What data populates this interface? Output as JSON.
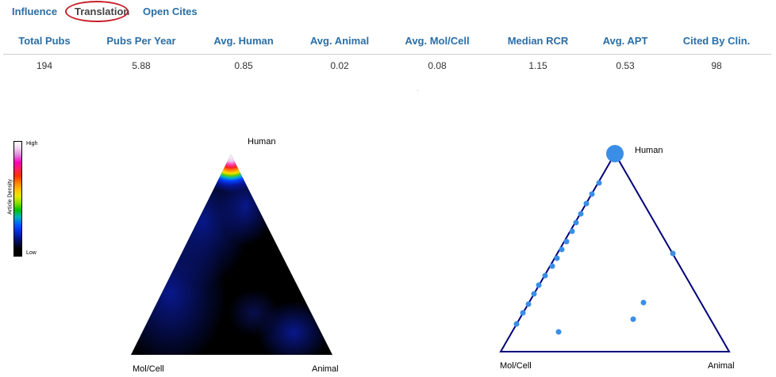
{
  "tabs": [
    {
      "label": "Influence"
    },
    {
      "label": "Translation"
    },
    {
      "label": "Open Cites"
    }
  ],
  "stats": {
    "headers": [
      "Total Pubs",
      "Pubs Per Year",
      "Avg. Human",
      "Avg. Animal",
      "Avg. Mol/Cell",
      "Median RCR",
      "Avg. APT",
      "Cited By Clin."
    ],
    "values": [
      "194",
      "5.88",
      "0.85",
      "0.02",
      "0.08",
      "1.15",
      "0.53",
      "98"
    ]
  },
  "density_legend": {
    "title": "Article Density",
    "high": "High",
    "low": "Low"
  },
  "density_plot": {
    "vertex_top": "Human",
    "vertex_left": "Mol/Cell",
    "vertex_right": "Animal"
  },
  "ternary_plot": {
    "vertex_top": "Human",
    "vertex_left": "Mol/Cell",
    "vertex_right": "Animal"
  },
  "colors": {
    "tab_blue": "#2a6ea6",
    "highlight_red": "#c8202a",
    "triangle_navy": "#00007a",
    "point_blue": "#3a8ee6"
  }
}
